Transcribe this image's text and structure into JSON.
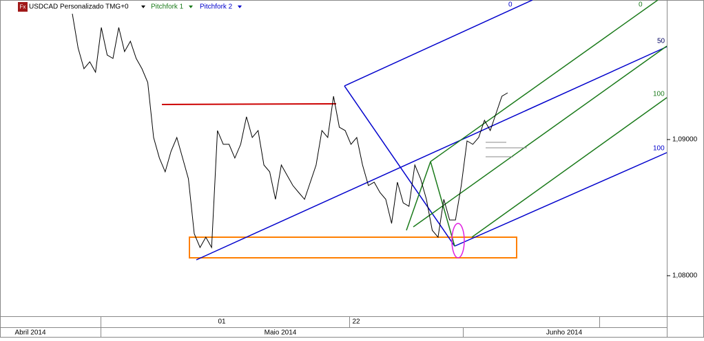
{
  "header": {
    "symbol": "USDCAD Personalizado TMG+0",
    "icon": "Fx",
    "tools": [
      "Pitchfork 1",
      "Pitchfork 2"
    ]
  },
  "annotations": [
    "0",
    "0",
    "50",
    "100",
    "100"
  ],
  "chart_data": {
    "type": "line",
    "color": "#000000",
    "values": [
      1.09924,
      1.09672,
      1.0952,
      1.09571,
      1.09495,
      1.09823,
      1.09621,
      1.09596,
      1.09823,
      1.09646,
      1.09722,
      1.09596,
      1.0952,
      1.09419,
      1.09015,
      1.08864,
      1.08763,
      1.08914,
      1.09015,
      1.08864,
      1.08712,
      1.08308,
      1.08207,
      1.08283,
      1.08207,
      1.09066,
      1.08965,
      1.08965,
      1.08864,
      1.08965,
      1.09167,
      1.09015,
      1.09066,
      1.08813,
      1.08763,
      1.08561,
      1.08813,
      1.08737,
      1.08662,
      1.08611,
      1.08561,
      1.08687,
      1.08813,
      1.09066,
      1.09015,
      1.09318,
      1.09091,
      1.09066,
      1.08965,
      1.09015,
      1.08813,
      1.08662,
      1.08687,
      1.08611,
      1.08561,
      1.08384,
      1.08687,
      1.08535,
      1.0851,
      1.08813,
      1.08712,
      1.08561,
      1.08333,
      1.08283,
      1.08561,
      1.08409,
      1.08409,
      1.08662,
      1.0899,
      1.08965,
      1.09015,
      1.09141,
      1.09066,
      1.09192,
      1.09318,
      1.09343
    ],
    "ylim": [
      1.07702,
      1.10025
    ],
    "yticks": [
      {
        "value": 1.09,
        "label": "1,09000"
      },
      {
        "value": 1.08,
        "label": "1,08000"
      }
    ],
    "day_labels": [
      "01",
      "22"
    ],
    "month_labels": [
      "Abril 2014",
      "Maio 2014",
      "Junho 2014"
    ]
  }
}
